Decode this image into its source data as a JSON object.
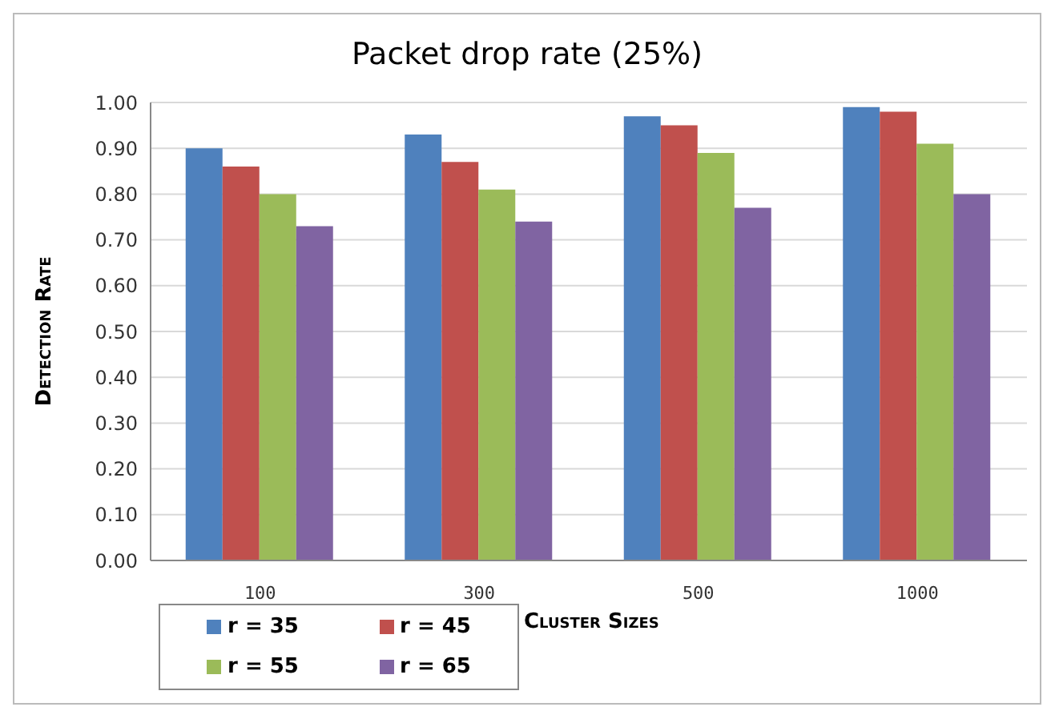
{
  "chart_data": {
    "type": "bar",
    "title": "Packet drop rate (25%)",
    "xlabel": "Cluster Sizes",
    "ylabel": "Detection Rate",
    "categories": [
      "100",
      "300",
      "500",
      "1000"
    ],
    "series": [
      {
        "name": "r = 35",
        "color": "#4f81bd",
        "values": [
          0.9,
          0.93,
          0.97,
          0.99
        ]
      },
      {
        "name": "r = 45",
        "color": "#c0504d",
        "values": [
          0.86,
          0.87,
          0.95,
          0.98
        ]
      },
      {
        "name": "r = 55",
        "color": "#9bbb59",
        "values": [
          0.8,
          0.81,
          0.89,
          0.91
        ]
      },
      {
        "name": "r = 65",
        "color": "#8064a2",
        "values": [
          0.73,
          0.74,
          0.77,
          0.8
        ]
      }
    ],
    "ylim": [
      0,
      1
    ],
    "yticks": [
      {
        "value": 0,
        "label": "0.00"
      },
      {
        "value": 0.1,
        "label": "0.10"
      },
      {
        "value": 0.2,
        "label": "0.20"
      },
      {
        "value": 0.3,
        "label": "0.30"
      },
      {
        "value": 0.4,
        "label": "0.40"
      },
      {
        "value": 0.5,
        "label": "0.50"
      },
      {
        "value": 0.6,
        "label": "0.60"
      },
      {
        "value": 0.7,
        "label": "0.70"
      },
      {
        "value": 0.8,
        "label": "0.80"
      },
      {
        "value": 0.9,
        "label": "0.90"
      },
      {
        "value": 1,
        "label": "1.00"
      }
    ],
    "grid": "y",
    "legend": "bottom left"
  }
}
